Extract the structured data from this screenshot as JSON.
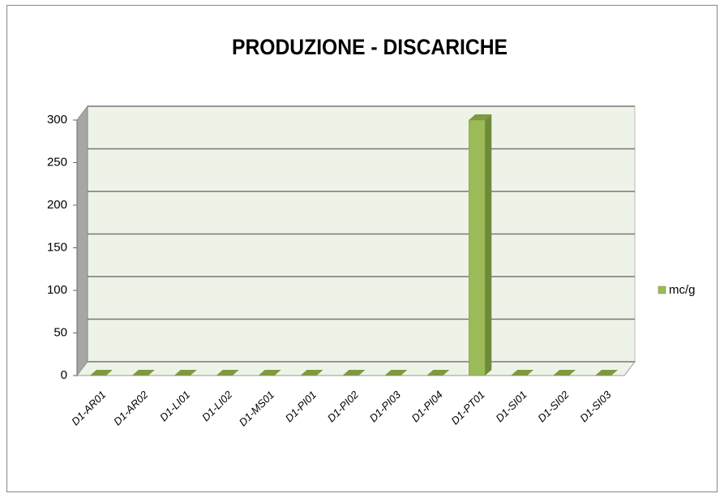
{
  "chart_data": {
    "type": "bar3d",
    "title": "PRODUZIONE - DISCARICHE",
    "categories": [
      "D1-AR01",
      "D1-AR02",
      "D1-LI01",
      "D1-LI02",
      "D1-MS01",
      "D1-PI01",
      "D1-PI02",
      "D1-PI03",
      "D1-PI04",
      "D1-PT01",
      "D1-SI01",
      "D1-SI02",
      "D1-SI03"
    ],
    "series": [
      {
        "name": "mc/g",
        "color": "#9bbb59",
        "values": [
          0,
          0,
          0,
          0,
          0,
          0,
          0,
          0,
          0,
          300,
          0,
          0,
          0
        ]
      }
    ],
    "ylim": [
      0,
      300
    ],
    "yticks": [
      0,
      50,
      100,
      150,
      200,
      250,
      300
    ],
    "grid": true,
    "legend": "right"
  }
}
